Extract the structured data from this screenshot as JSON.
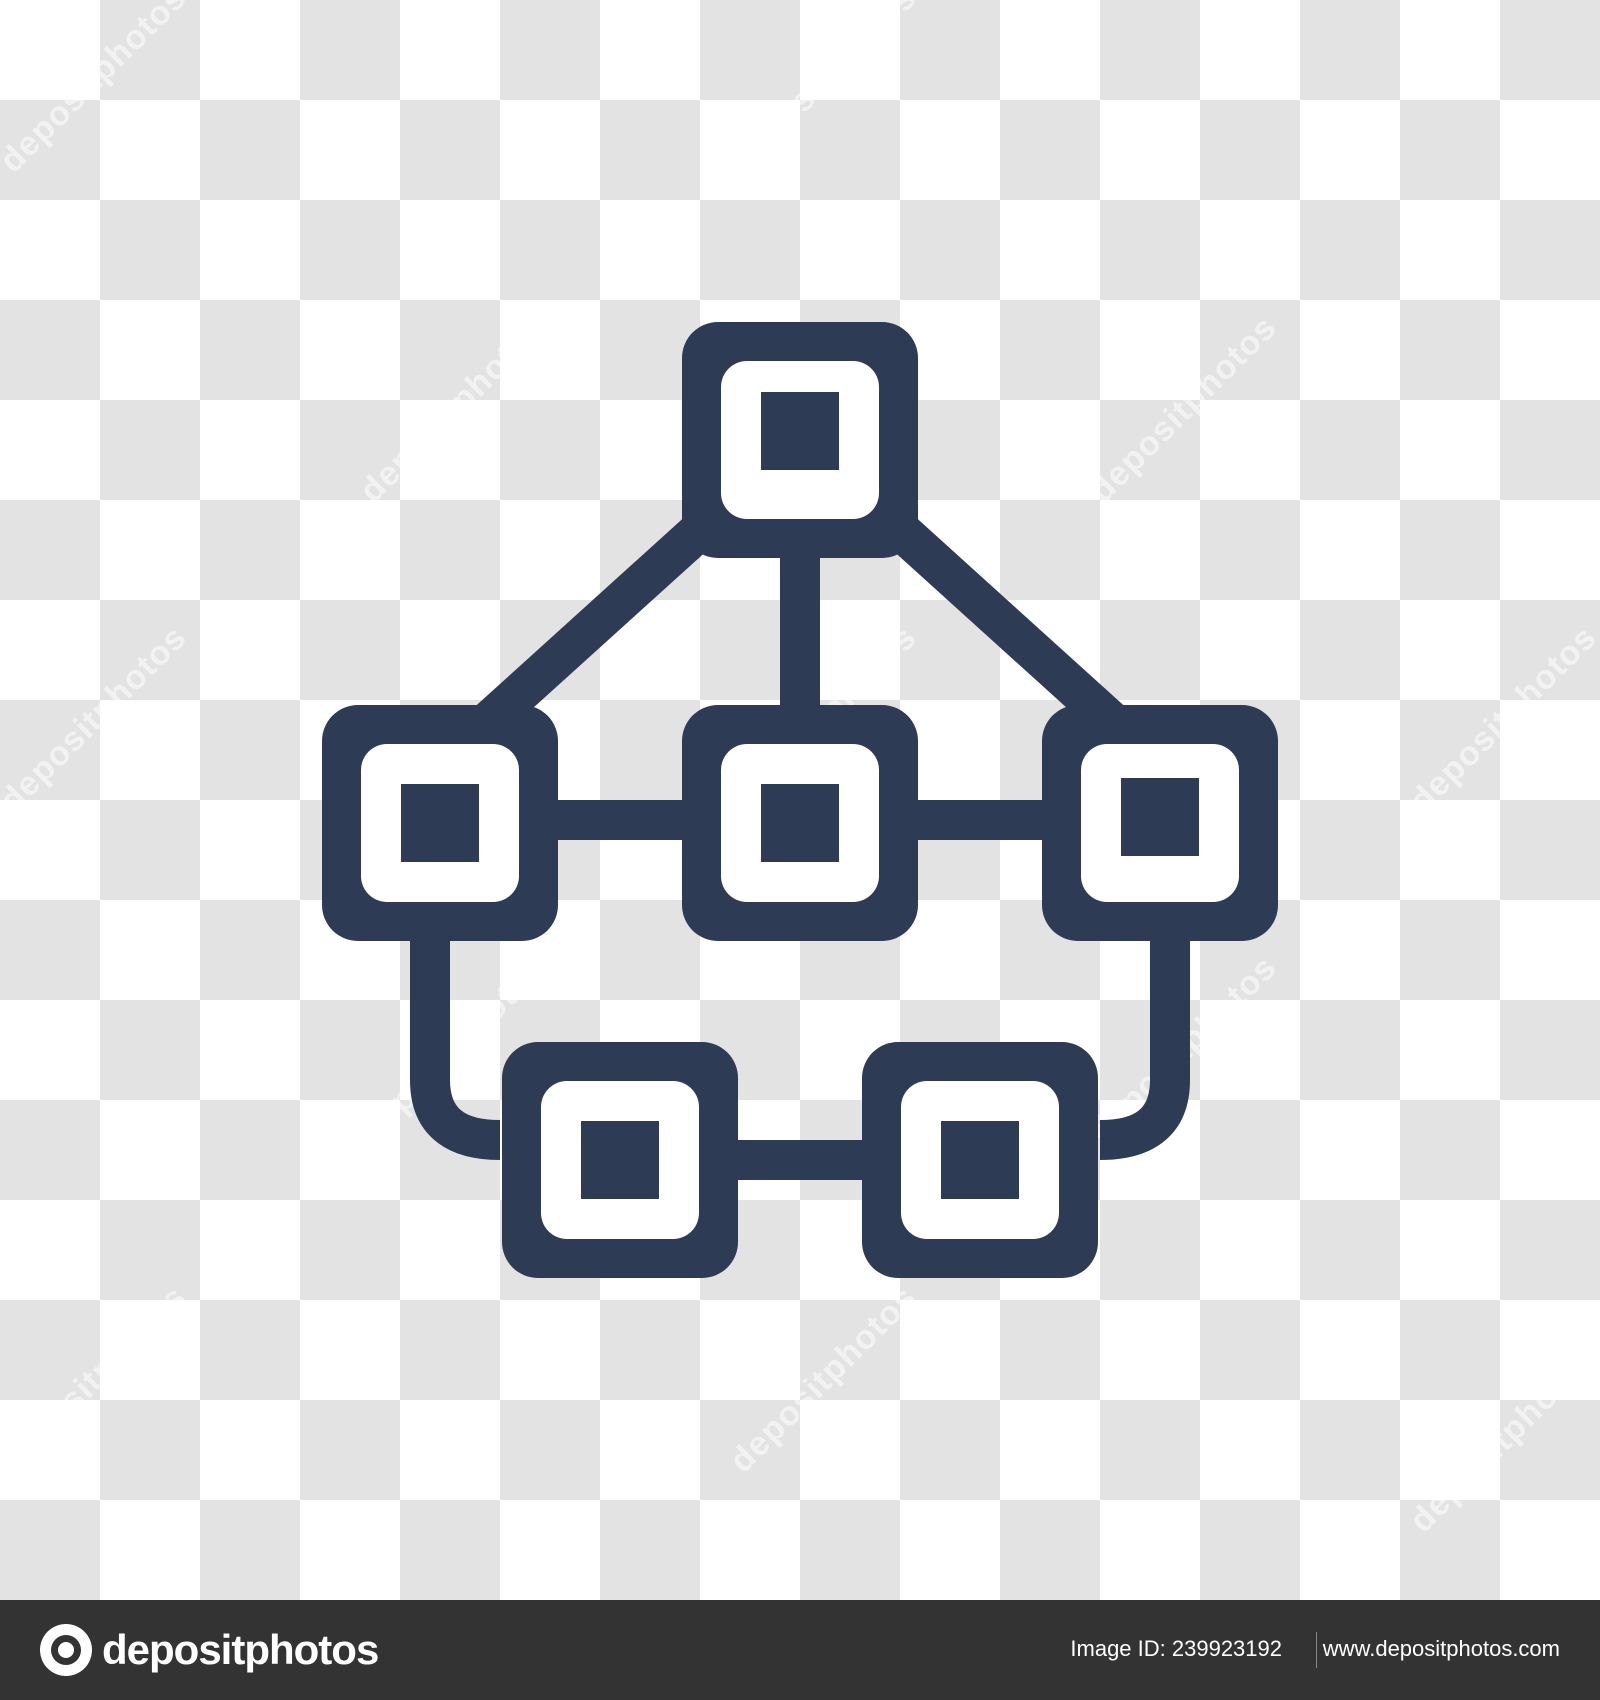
{
  "diagram": {
    "name": "network hierarchy icon",
    "stroke_color": "#2e3b55",
    "nodes": [
      "top",
      "middle-left",
      "middle-center",
      "middle-right",
      "bottom-left",
      "bottom-right"
    ],
    "links": [
      [
        "top",
        "middle-left"
      ],
      [
        "top",
        "middle-center"
      ],
      [
        "top",
        "middle-right"
      ],
      [
        "middle-left",
        "middle-center"
      ],
      [
        "middle-center",
        "middle-right"
      ],
      [
        "middle-left",
        "bottom-left"
      ],
      [
        "bottom-left",
        "bottom-right"
      ],
      [
        "bottom-right",
        "middle-right"
      ]
    ]
  },
  "watermark": {
    "text": "depositphotos"
  },
  "footer": {
    "brand": "depositphotos",
    "image_id_label": "Image ID: 239923192",
    "website": "www.depositphotos.com"
  },
  "colors": {
    "icon": "#2e3b55",
    "footer_bg": "#333333",
    "checker": "#e3e3e3"
  }
}
